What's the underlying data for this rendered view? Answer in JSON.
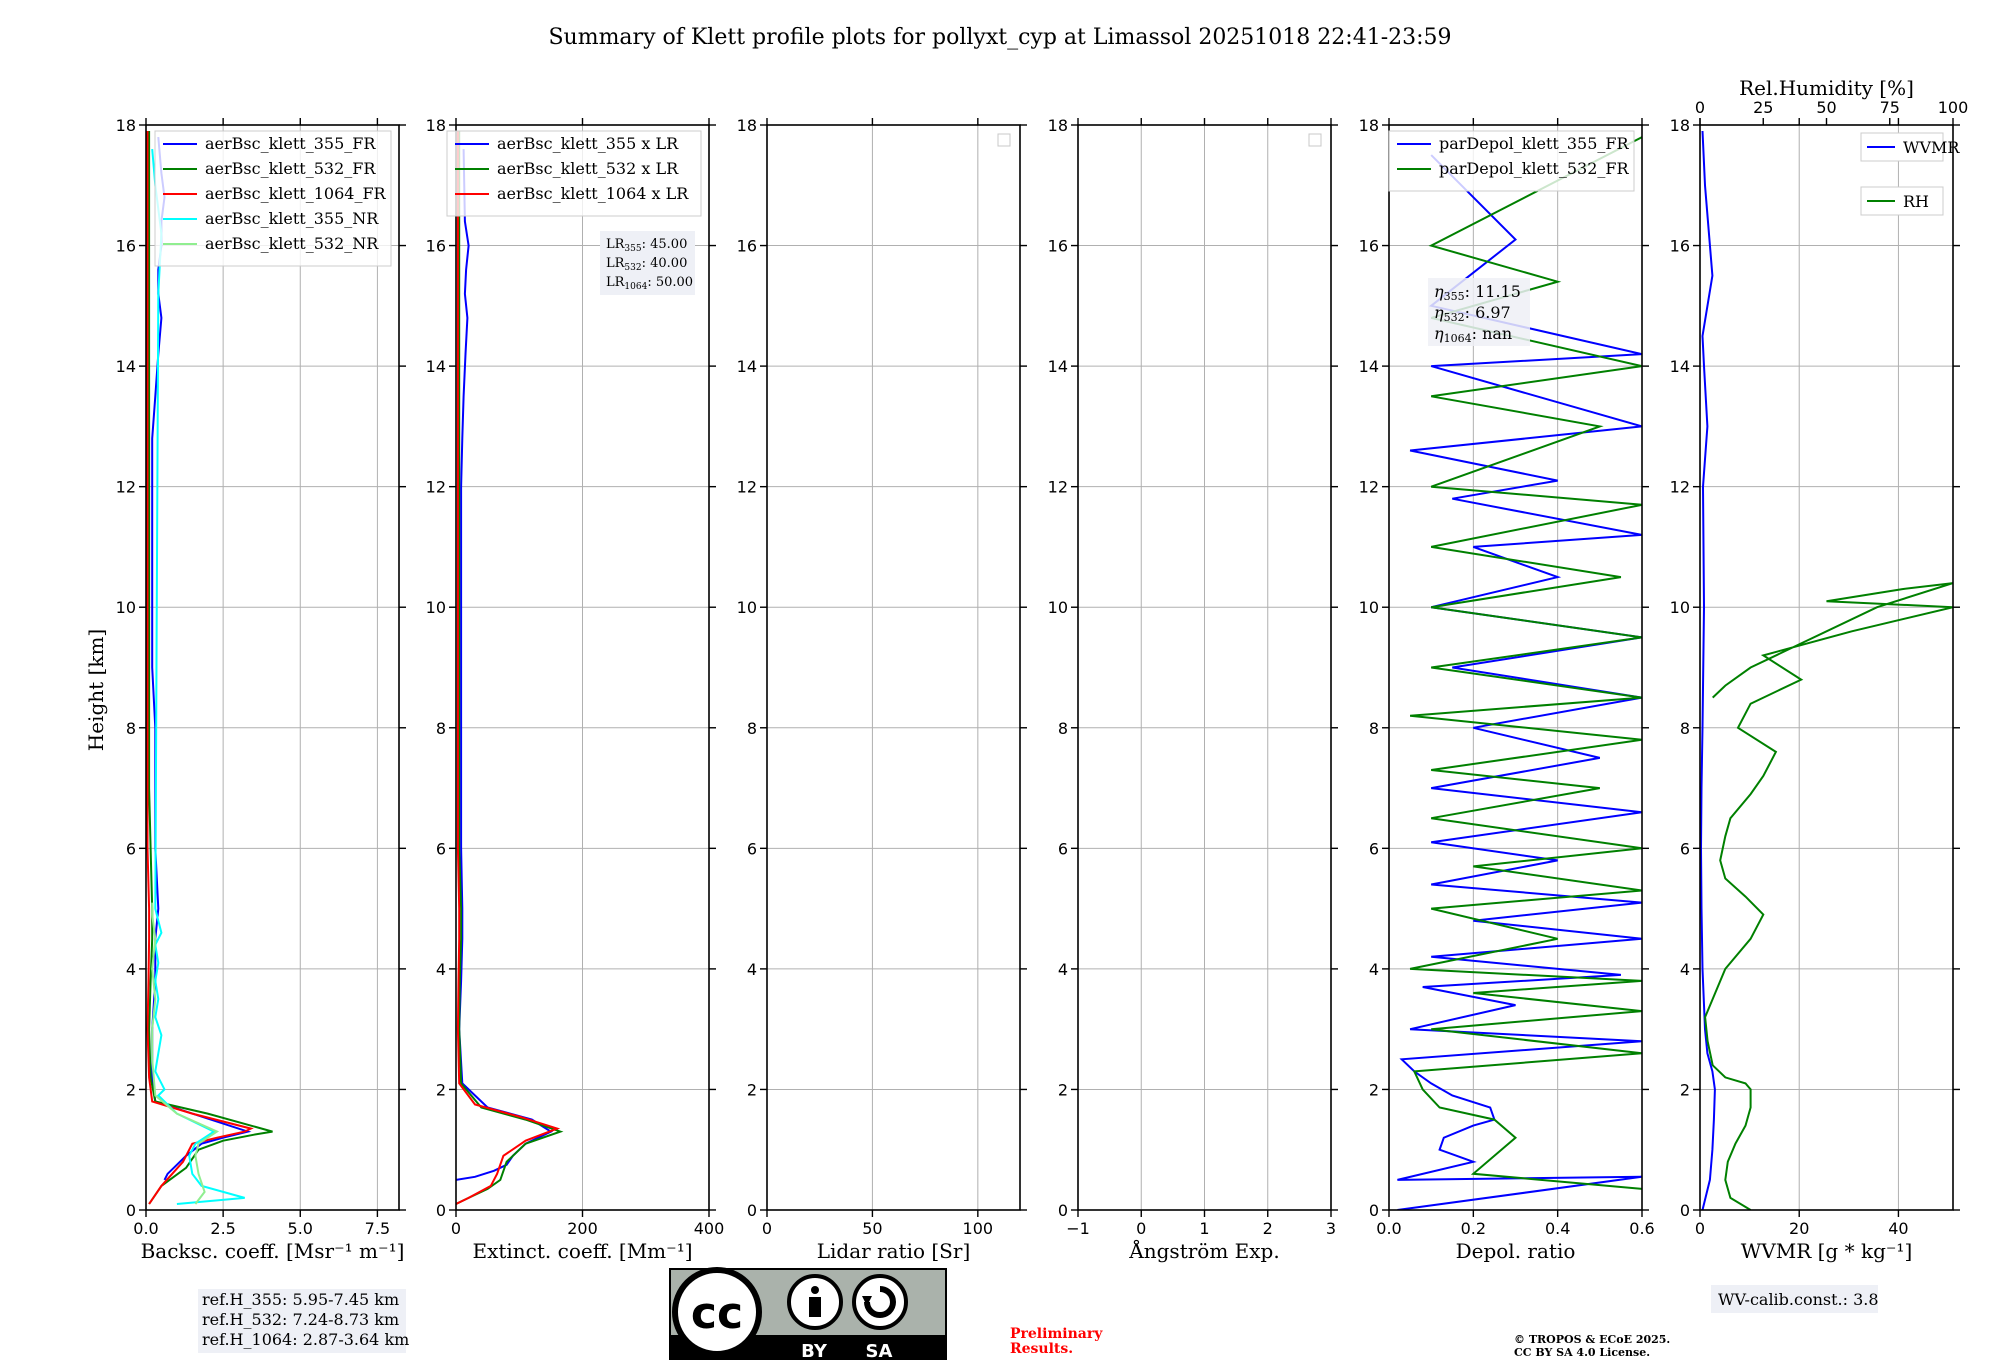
{
  "title": "Summary of Klett profile plots for pollyxt_cyp at Limassol 20251018 22:41-23:59",
  "ylabel": "Height [km]",
  "chart_data": [
    {
      "type": "line",
      "xlabel": "Backsc. coeff. [Msr⁻¹ m⁻¹]",
      "xlim": [
        0,
        8.2
      ],
      "xticks": [
        0,
        2.5,
        5.0,
        7.5
      ],
      "xtick_labels": [
        "0.0",
        "2.5",
        "5.0",
        "7.5"
      ],
      "ylim": [
        0,
        18
      ],
      "legend": "top-right",
      "series": [
        {
          "name": "aerBsc_klett_355_FR",
          "color": "#0000ff",
          "x": [
            0.6,
            0.7,
            0.9,
            1.3,
            1.8,
            2.5,
            3.3,
            1.5,
            0.3,
            0.2,
            0.2,
            0.3,
            0.3,
            0.4,
            0.3,
            0.3,
            0.3,
            0.2,
            0.2,
            0.2,
            0.2,
            0.2,
            0.3,
            0.4,
            0.5,
            0.4,
            0.4,
            0.5,
            0.5,
            0.6,
            0.5,
            0.4
          ],
          "y": [
            0.5,
            0.6,
            0.7,
            0.9,
            1.1,
            1.2,
            1.3,
            1.6,
            1.8,
            2.2,
            3.0,
            3.8,
            4.5,
            5.0,
            6.0,
            7.0,
            8.0,
            9.0,
            10.0,
            11.0,
            12.0,
            12.8,
            13.5,
            14.2,
            14.8,
            15.2,
            15.6,
            16.0,
            16.4,
            16.8,
            17.2,
            17.8
          ]
        },
        {
          "name": "aerBsc_klett_532_FR",
          "color": "#008000",
          "x": [
            0.1,
            0.5,
            1.3,
            1.7,
            2.5,
            3.5,
            4.1,
            2.0,
            0.3,
            0.15,
            0.1,
            0.15,
            0.2,
            0.2,
            0.15,
            0.1,
            0.1,
            0.1,
            0.1,
            0.1,
            0.1,
            0.1,
            0.1,
            0.1,
            0.1,
            0.1,
            0.1,
            0.1,
            0.1,
            0.1
          ],
          "y": [
            0.1,
            0.4,
            0.7,
            1.0,
            1.15,
            1.25,
            1.3,
            1.6,
            1.8,
            2.2,
            3.0,
            3.8,
            4.5,
            5.0,
            6.0,
            7.0,
            8.0,
            9.0,
            10.0,
            11.0,
            12.0,
            12.8,
            13.5,
            14.2,
            14.8,
            15.6,
            16.0,
            16.4,
            17.2,
            17.9
          ]
        },
        {
          "name": "aerBsc_klett_1064_FR",
          "color": "#ff0000",
          "x": [
            0.1,
            0.5,
            1.2,
            1.5,
            2.3,
            3.2,
            3.4,
            1.5,
            0.2,
            0.1,
            0.05,
            0.08,
            0.1,
            0.1,
            0.05,
            0.05,
            0.05,
            0.05,
            0.05,
            0.05,
            0.05,
            0.05,
            0.05,
            0.05,
            0.05,
            0.05,
            0.05
          ],
          "y": [
            0.1,
            0.4,
            0.8,
            1.1,
            1.2,
            1.3,
            1.35,
            1.6,
            1.8,
            2.2,
            3.0,
            3.8,
            4.5,
            5.0,
            6.0,
            7.0,
            8.0,
            9.0,
            10.0,
            11.0,
            12.0,
            13.0,
            14.0,
            15.0,
            16.0,
            17.0,
            17.9
          ]
        },
        {
          "name": "aerBsc_klett_355_NR",
          "color": "#00ffff",
          "x": [
            1.0,
            3.2,
            1.8,
            1.5,
            1.4,
            1.6,
            2.2,
            1.0,
            0.4,
            0.6,
            0.3,
            0.4,
            0.5,
            0.3,
            0.4,
            0.3,
            0.4,
            0.3,
            0.5,
            0.4,
            0.3,
            0.4,
            0.5,
            0.3,
            0.2
          ],
          "y": [
            0.1,
            0.2,
            0.4,
            0.6,
            0.9,
            1.1,
            1.3,
            1.6,
            1.9,
            2.0,
            2.3,
            2.6,
            2.9,
            3.2,
            3.5,
            3.8,
            4.1,
            4.4,
            4.6,
            4.8,
            5.0,
            15.2,
            16.2,
            17.0,
            17.6
          ]
        },
        {
          "name": "aerBsc_klett_532_NR",
          "color": "#90ee90",
          "x": [
            1.6,
            1.9,
            1.7,
            1.6,
            1.7,
            2.3,
            1.0,
            0.3,
            0.2,
            0.2,
            0.3,
            0.2,
            0.3,
            0.2,
            0.2
          ],
          "y": [
            0.1,
            0.3,
            0.6,
            0.9,
            1.1,
            1.3,
            1.6,
            1.9,
            2.5,
            3.0,
            3.5,
            4.0,
            4.5,
            4.9,
            5.1
          ]
        }
      ]
    },
    {
      "type": "line",
      "xlabel": "Extinct. coeff. [Mm⁻¹]",
      "xlim": [
        0,
        400
      ],
      "xticks": [
        0,
        200,
        400
      ],
      "xtick_labels": [
        "0",
        "200",
        "400"
      ],
      "ylim": [
        0,
        18
      ],
      "legend": "top-right",
      "annotation": {
        "lr355": "45.00",
        "lr532": "40.00",
        "lr1064": "50.00"
      },
      "series": [
        {
          "name": "aerBsc_klett_355 x LR",
          "color": "#0000ff",
          "x": [
            0,
            30,
            60,
            80,
            90,
            110,
            150,
            120,
            50,
            10,
            5,
            8,
            10,
            10,
            8,
            8,
            8,
            8,
            8,
            8,
            8,
            10,
            12,
            15,
            18,
            14,
            16,
            20,
            14,
            12
          ],
          "y": [
            0.5,
            0.55,
            0.65,
            0.75,
            0.9,
            1.1,
            1.3,
            1.5,
            1.7,
            2.1,
            3.0,
            3.8,
            4.5,
            5.0,
            6.0,
            7.0,
            8.0,
            9.0,
            10.0,
            11.0,
            12.0,
            12.8,
            13.5,
            14.2,
            14.8,
            15.2,
            15.6,
            16.0,
            16.4,
            17.6
          ]
        },
        {
          "name": "aerBsc_klett_532 x LR",
          "color": "#008000",
          "x": [
            0,
            20,
            50,
            70,
            80,
            110,
            165,
            110,
            40,
            8,
            5,
            6,
            8,
            8,
            5,
            5,
            5,
            5,
            5,
            5,
            5,
            5,
            5,
            5,
            5
          ],
          "y": [
            0.1,
            0.2,
            0.35,
            0.5,
            0.8,
            1.1,
            1.3,
            1.5,
            1.7,
            2.1,
            3.0,
            3.8,
            4.5,
            5.0,
            6.0,
            7.0,
            8.0,
            9.0,
            10.0,
            11.0,
            12.0,
            13.0,
            14.0,
            16.0,
            17.9
          ]
        },
        {
          "name": "aerBsc_klett_1064 x LR",
          "color": "#ff0000",
          "x": [
            0,
            20,
            55,
            65,
            75,
            110,
            160,
            100,
            30,
            5,
            3,
            4,
            5,
            5,
            3,
            3,
            3,
            3,
            3,
            3,
            3,
            3,
            3
          ],
          "y": [
            0.1,
            0.2,
            0.4,
            0.6,
            0.9,
            1.15,
            1.35,
            1.55,
            1.75,
            2.1,
            3.0,
            3.8,
            4.5,
            5.0,
            6.0,
            7.0,
            8.0,
            9.0,
            10.0,
            12.0,
            14.0,
            16.0,
            17.9
          ]
        }
      ]
    },
    {
      "type": "line",
      "xlabel": "Lidar ratio [Sr]",
      "xlim": [
        0,
        120
      ],
      "xticks": [
        0,
        50,
        100
      ],
      "xtick_labels": [
        "0",
        "50",
        "100"
      ],
      "ylim": [
        0,
        18
      ],
      "legend": "top-right",
      "series": []
    },
    {
      "type": "line",
      "xlabel": "Ångström Exp.",
      "xlim": [
        -1,
        3
      ],
      "xticks": [
        -1,
        0,
        1,
        2,
        3
      ],
      "xtick_labels": [
        "−1",
        "0",
        "1",
        "2",
        "3"
      ],
      "ylim": [
        0,
        18
      ],
      "legend": "top-right",
      "series": []
    },
    {
      "type": "line",
      "xlabel": "Depol. ratio",
      "xlim": [
        0,
        0.6
      ],
      "xticks": [
        0.0,
        0.2,
        0.4,
        0.6
      ],
      "xtick_labels": [
        "0.0",
        "0.2",
        "0.4",
        "0.6"
      ],
      "ylim": [
        0,
        18
      ],
      "legend": "top-right",
      "annotation": {
        "eta355": "11.15",
        "eta532": "6.97",
        "eta1064": "nan"
      },
      "series": [
        {
          "name": "parDepol_klett_355_FR",
          "color": "#0000ff",
          "x": [
            0.02,
            0.6,
            0.02,
            0.2,
            0.12,
            0.13,
            0.2,
            0.25,
            0.24,
            0.15,
            0.1,
            0.06,
            0.03,
            0.6,
            0.05,
            0.3,
            0.08,
            0.55,
            0.1,
            0.6,
            0.2,
            0.6,
            0.1,
            0.4,
            0.1,
            0.6,
            0.1,
            0.5,
            0.2,
            0.6,
            0.15,
            0.6,
            0.1,
            0.4,
            0.2,
            0.6,
            0.15,
            0.4,
            0.05,
            0.6,
            0.1,
            0.6,
            0.1,
            0.3,
            0.1
          ],
          "y": [
            0.0,
            0.55,
            0.5,
            0.8,
            1.0,
            1.2,
            1.4,
            1.5,
            1.7,
            1.9,
            2.1,
            2.3,
            2.5,
            2.8,
            3.0,
            3.4,
            3.7,
            3.9,
            4.2,
            4.5,
            4.8,
            5.1,
            5.4,
            5.8,
            6.1,
            6.6,
            7.0,
            7.5,
            8.0,
            8.5,
            9.0,
            9.5,
            10.0,
            10.5,
            11.0,
            11.2,
            11.8,
            12.1,
            12.6,
            13.0,
            14.0,
            14.2,
            15.0,
            16.1,
            17.5
          ]
        },
        {
          "name": "parDepol_klett_532_FR",
          "color": "#008000",
          "x": [
            0.6,
            0.2,
            0.25,
            0.3,
            0.25,
            0.12,
            0.08,
            0.06,
            0.6,
            0.1,
            0.6,
            0.2,
            0.6,
            0.05,
            0.4,
            0.1,
            0.6,
            0.2,
            0.6,
            0.1,
            0.5,
            0.1,
            0.6,
            0.05,
            0.6,
            0.1,
            0.6,
            0.1,
            0.55,
            0.1,
            0.6,
            0.1,
            0.5,
            0.1,
            0.6,
            0.1,
            0.4,
            0.1,
            0.6
          ],
          "y": [
            0.35,
            0.6,
            0.9,
            1.2,
            1.5,
            1.7,
            2.0,
            2.3,
            2.6,
            3.0,
            3.3,
            3.6,
            3.8,
            4.0,
            4.5,
            5.0,
            5.3,
            5.7,
            6.0,
            6.5,
            7.0,
            7.3,
            7.8,
            8.2,
            8.5,
            9.0,
            9.5,
            10.0,
            10.5,
            11.0,
            11.7,
            12.0,
            13.0,
            13.5,
            14.0,
            14.8,
            15.4,
            16.0,
            17.8
          ]
        }
      ]
    },
    {
      "type": "line",
      "xlabel": "WVMR [g * kg⁻¹]",
      "xlim": [
        0,
        51
      ],
      "xticks": [
        0,
        20,
        40
      ],
      "xtick_labels": [
        "0",
        "20",
        "40"
      ],
      "ylim": [
        0,
        18
      ],
      "top_axis": {
        "label": "Rel.Humidity [%]",
        "xlim": [
          0,
          100
        ],
        "xticks": [
          0,
          25,
          50,
          75,
          100
        ],
        "xtick_labels": [
          "0",
          "25",
          "50",
          "75",
          "100"
        ]
      },
      "legend": "top-right",
      "series": [
        {
          "name": "WVMR",
          "color": "#0000ff",
          "x": [
            0.5,
            2,
            2.5,
            2.8,
            3,
            2.5,
            1.5,
            1,
            0.5,
            0.3,
            0.2,
            0.3,
            0.5,
            0.8,
            0.6,
            1.5,
            0.8,
            0.5,
            2.5,
            1.0,
            0.5
          ],
          "y": [
            0.0,
            0.5,
            1.0,
            1.5,
            2.0,
            2.3,
            2.6,
            3.0,
            4.0,
            5.0,
            6.0,
            7.0,
            8.0,
            10.0,
            12.0,
            13.0,
            14.0,
            14.5,
            15.5,
            17.0,
            17.9
          ]
        },
        {
          "name": "RH",
          "color": "#008000",
          "x": [
            20,
            12,
            10,
            11,
            14,
            18,
            20,
            20,
            18,
            10,
            5,
            3,
            2,
            6,
            10,
            20,
            25,
            18,
            10,
            8,
            10,
            12,
            20,
            25,
            30,
            15,
            20,
            40,
            25,
            60,
            100,
            50,
            80,
            100,
            70,
            40,
            20,
            10,
            5
          ],
          "y": [
            0.0,
            0.2,
            0.5,
            0.8,
            1.1,
            1.4,
            1.7,
            2.0,
            2.1,
            2.2,
            2.4,
            2.8,
            3.2,
            3.6,
            4.0,
            4.5,
            4.9,
            5.2,
            5.5,
            5.8,
            6.2,
            6.5,
            6.9,
            7.2,
            7.6,
            8.0,
            8.4,
            8.8,
            9.2,
            9.6,
            10.0,
            10.1,
            10.3,
            10.4,
            10.0,
            9.4,
            9.0,
            8.7,
            8.5
          ]
        }
      ]
    }
  ],
  "refbox": {
    "line1": "ref.H_355: 5.95-7.45 km",
    "line2": "ref.H_532: 7.24-8.73 km",
    "line3": "ref.H_1064: 2.87-3.64 km"
  },
  "lrbox": {
    "l1k": "LR",
    "l1s": "355",
    "l2k": "LR",
    "l2s": "532",
    "l3k": "LR",
    "l3s": "1064"
  },
  "etabox": {
    "k": "η",
    "s1": "355",
    "s2": "532",
    "s3": "1064"
  },
  "wvbox": "WV-calib.const.: 3.8",
  "cc": {
    "cc": "cc",
    "by": "BY",
    "sa": "SA"
  },
  "prelim": {
    "line1": "Preliminary",
    "line2": "Results."
  },
  "copyright": {
    "line1": "© TROPOS & ECoE 2025.",
    "line2": "CC BY SA 4.0 License."
  }
}
